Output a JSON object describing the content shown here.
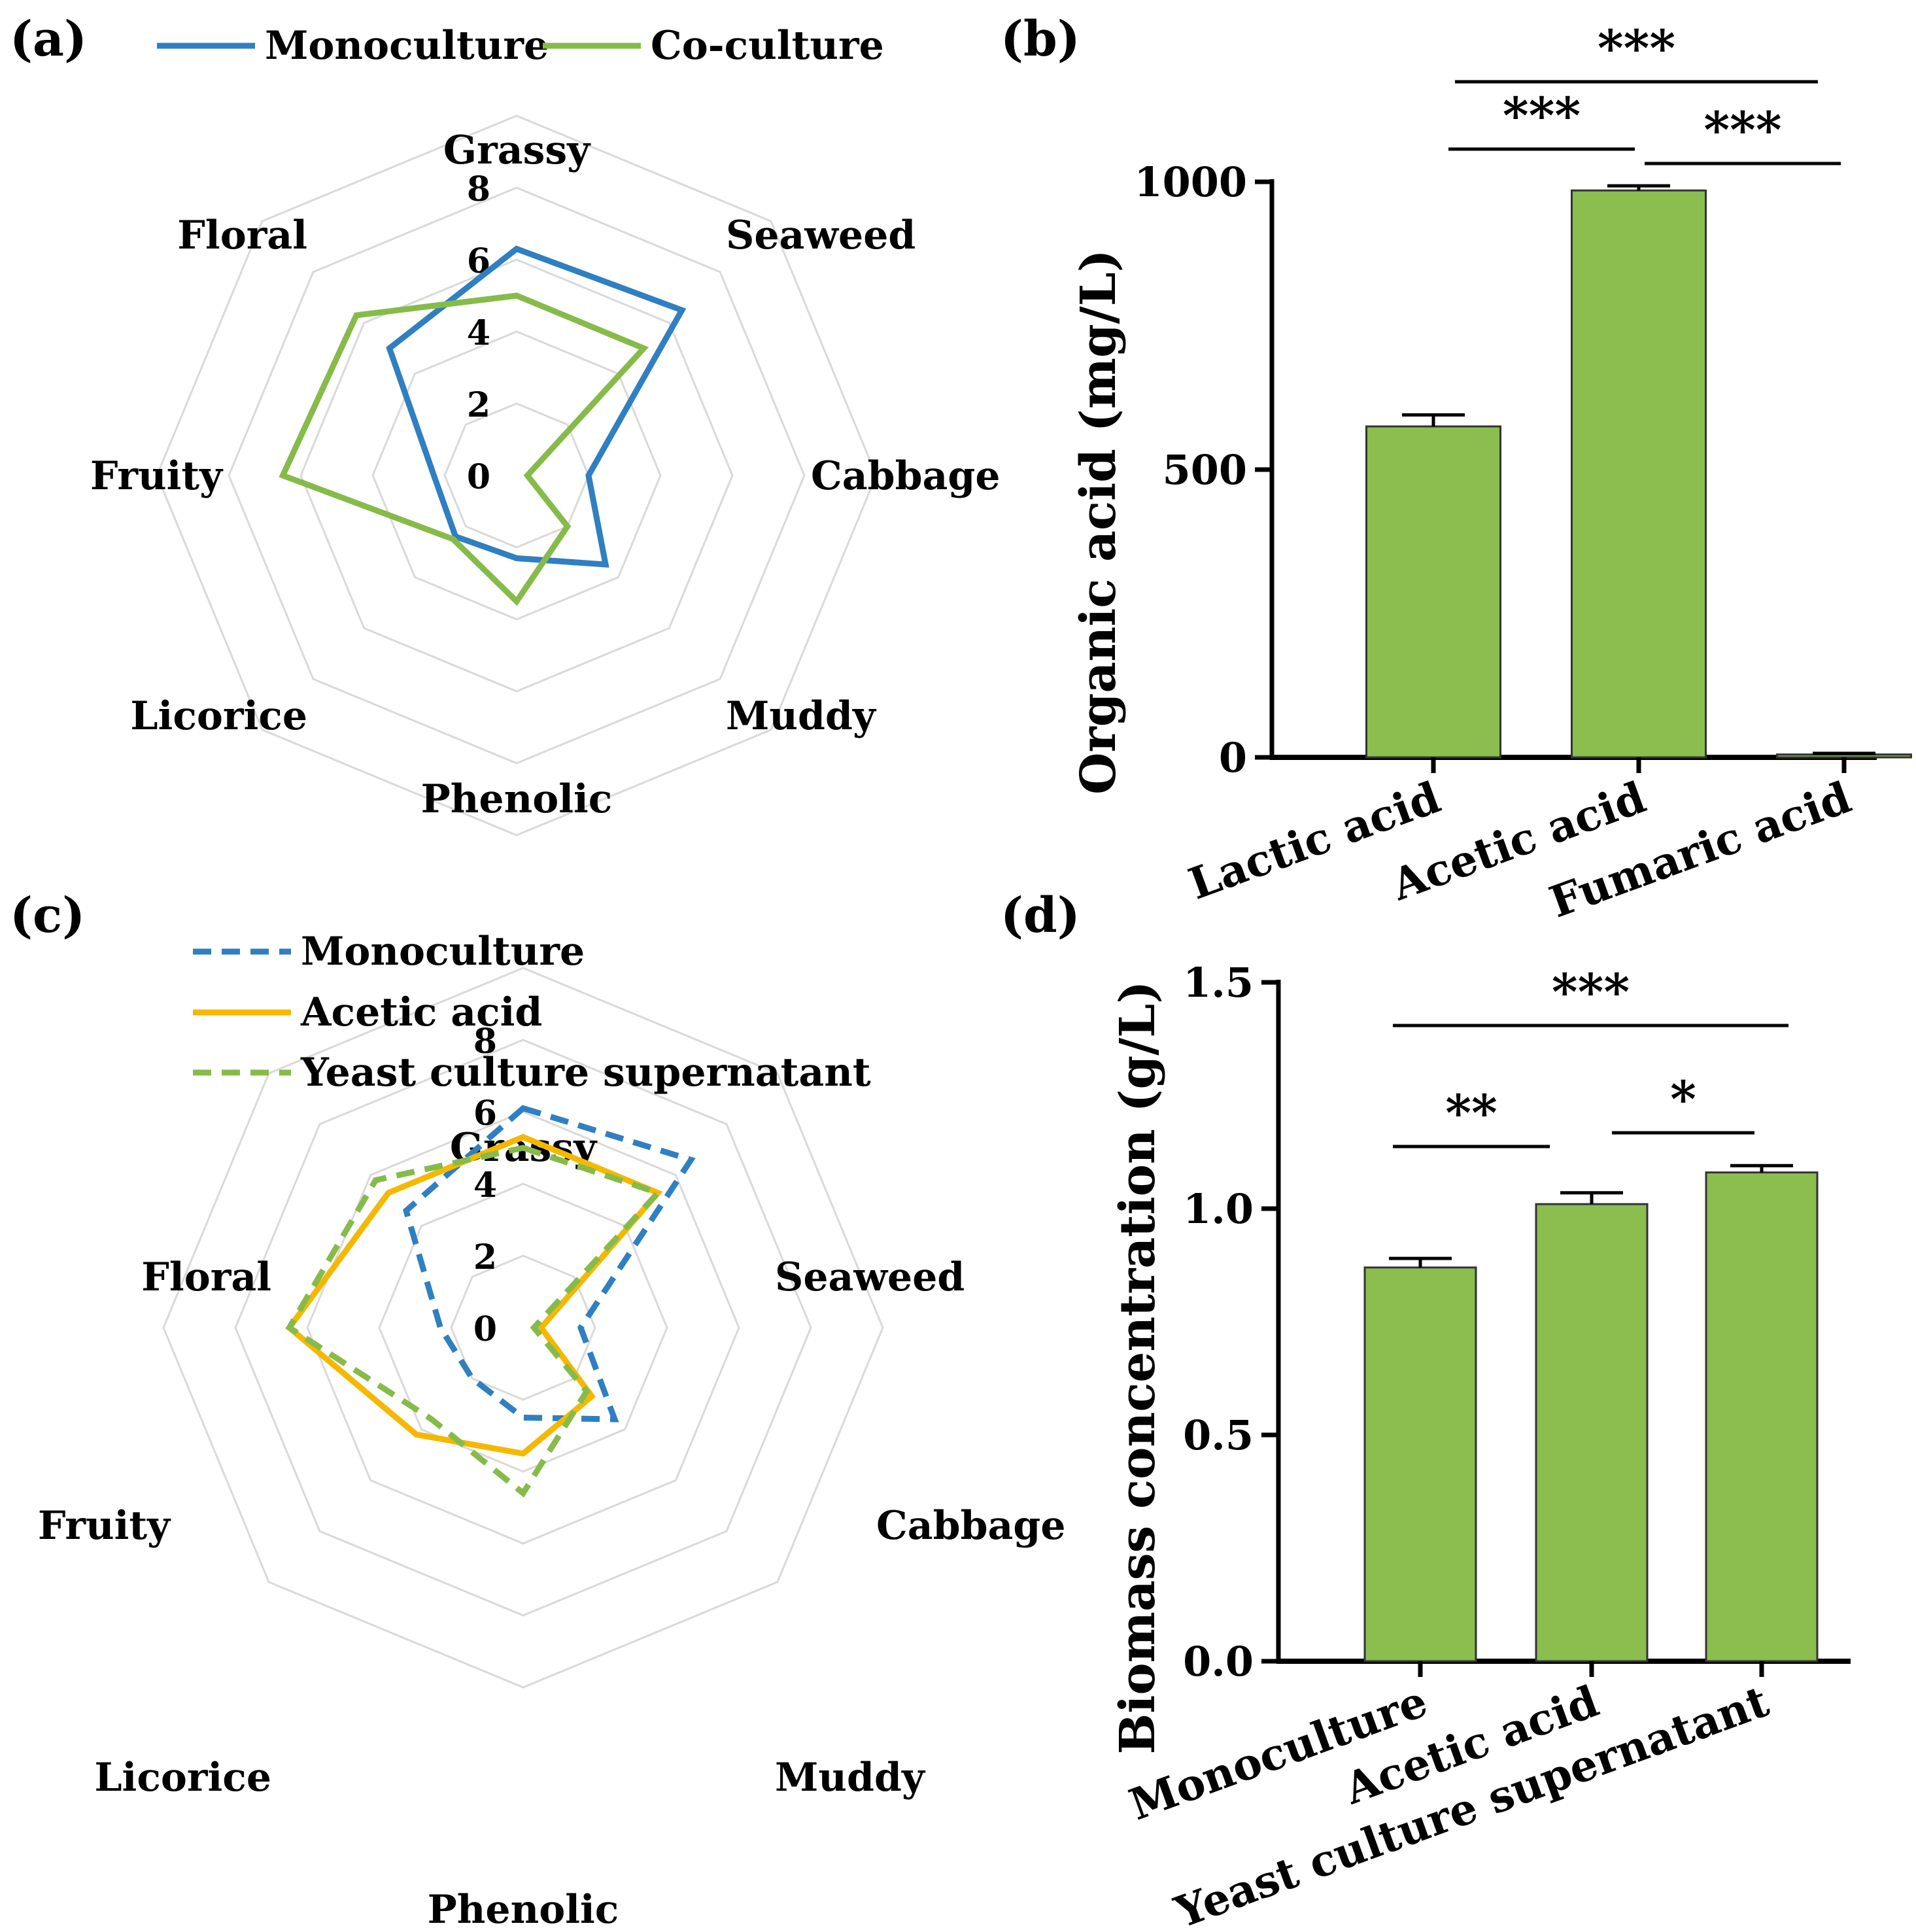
{
  "colors": {
    "monoculture": "#2f7fc1",
    "coculture": "#86bb4a",
    "acetic": "#f5b800",
    "bar_fill": "#8bbd4f",
    "grid": "#d9d9d9"
  },
  "panels": {
    "a": {
      "label": "(a)"
    },
    "b": {
      "label": "(b)"
    },
    "c": {
      "label": "(c)"
    },
    "d": {
      "label": "(d)"
    }
  },
  "chart_data": [
    {
      "type": "radar",
      "panel": "a",
      "axes": [
        "Grassy",
        "Seaweed",
        "Cabbage",
        "Muddy",
        "Phenolic",
        "Licorice",
        "Fruity",
        "Floral"
      ],
      "rlim": [
        0,
        8
      ],
      "rticks": [
        0,
        2,
        4,
        6,
        8
      ],
      "legend_position": "top",
      "series": [
        {
          "name": "Monoculture",
          "style": "solid",
          "values": [
            6.3,
            6.5,
            2.0,
            3.5,
            2.3,
            2.4,
            2.3,
            5.0
          ]
        },
        {
          "name": "Co-culture",
          "style": "solid",
          "values": [
            5.0,
            5.0,
            0.3,
            2.0,
            3.5,
            2.5,
            6.5,
            6.3
          ]
        }
      ]
    },
    {
      "type": "bar",
      "panel": "b",
      "categories": [
        "Lactic acid",
        "Acetic acid",
        "Fumaric acid"
      ],
      "values": [
        575,
        985,
        5
      ],
      "errors": [
        20,
        8,
        2
      ],
      "ylabel": "Organic acid (mg/L)",
      "ylim": [
        0,
        1000
      ],
      "yticks": [
        "0",
        "500",
        "1000"
      ],
      "significance": [
        {
          "from": 0,
          "to": 1,
          "label": "***"
        },
        {
          "from": 1,
          "to": 2,
          "label": "***"
        },
        {
          "from": 0,
          "to": 2,
          "label": "***"
        }
      ]
    },
    {
      "type": "radar",
      "panel": "c",
      "axes": [
        "Grassy",
        "Seaweed",
        "Cabbage",
        "Muddy",
        "Phenolic",
        "Licorice",
        "Fruity",
        "Floral"
      ],
      "rlim": [
        0,
        8
      ],
      "rticks": [
        0,
        2,
        4,
        6,
        8
      ],
      "legend_position": "top-left",
      "series": [
        {
          "name": "Monoculture",
          "style": "dashed",
          "values": [
            6.1,
            6.6,
            1.6,
            3.6,
            2.5,
            2.0,
            2.3,
            4.6
          ]
        },
        {
          "name": "Acetic acid",
          "style": "solid",
          "values": [
            5.3,
            5.3,
            0.5,
            2.7,
            3.5,
            4.2,
            6.5,
            5.3
          ]
        },
        {
          "name": "Yeast culture supernatant",
          "style": "dashed",
          "values": [
            5.0,
            5.3,
            0.3,
            2.5,
            4.6,
            3.6,
            6.5,
            5.8
          ]
        }
      ]
    },
    {
      "type": "bar",
      "panel": "d",
      "categories": [
        "Monoculture",
        "Acetic acid",
        "Yeast culture supernatant"
      ],
      "values": [
        0.87,
        1.01,
        1.08
      ],
      "errors": [
        0.02,
        0.025,
        0.015
      ],
      "ylabel": "Biomass concentration (g/L)",
      "ylim": [
        0,
        1.5
      ],
      "yticks": [
        "0.0",
        "0.5",
        "1.0",
        "1.5"
      ],
      "significance": [
        {
          "from": 0,
          "to": 1,
          "label": "**"
        },
        {
          "from": 1,
          "to": 2,
          "label": "*"
        },
        {
          "from": 0,
          "to": 2,
          "label": "***"
        }
      ]
    }
  ]
}
